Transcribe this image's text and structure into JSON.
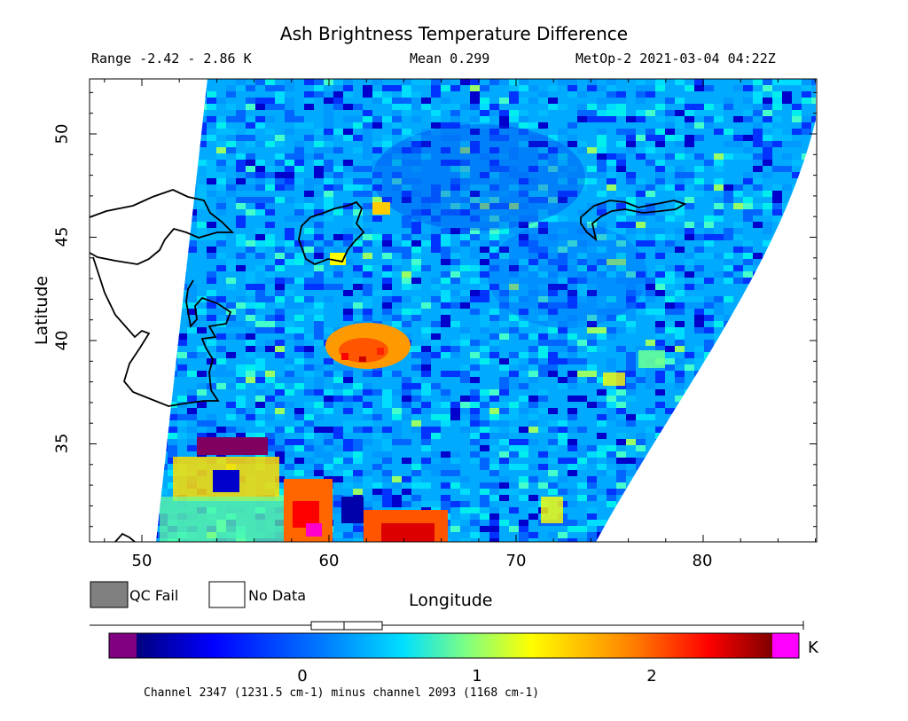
{
  "title": "Ash Brightness Temperature Difference",
  "range_text": "Range -2.42 - 2.86 K",
  "mean_text": "Mean 0.299",
  "platform_text": "MetOp-2 2021-03-04 04:22Z",
  "xlabel": "Longitude",
  "ylabel": "Latitude",
  "x_ticks": [
    "50",
    "60",
    "70",
    "80"
  ],
  "y_ticks": [
    "50",
    "45",
    "40",
    "35"
  ],
  "legend": {
    "qc_fail": "QC Fail",
    "no_data": "No Data",
    "qc_fail_color": "#808080",
    "no_data_color": "#ffffff"
  },
  "colorbar": {
    "unit": "K",
    "ticks": [
      "0",
      "1",
      "2"
    ],
    "colors": [
      "#800080",
      "#00007f",
      "#0000ff",
      "#007fff",
      "#00ffff",
      "#7fff7f",
      "#ffff00",
      "#ff7f00",
      "#ff0000",
      "#7f0000",
      "#ff00ff"
    ],
    "caption": "Channel 2347 (1231.5 cm-1) minus channel 2093 (1168 cm-1)"
  },
  "map": {
    "lon_range": [
      47,
      86
    ],
    "lat_range": [
      30.2,
      52.8
    ],
    "colors": {
      "background": "#00aaff",
      "dark_blue": "#0000cc",
      "blue": "#0055ff",
      "cyan": "#00ddff",
      "green": "#66ff99",
      "yellow": "#ffff00",
      "orange": "#ff9900",
      "red": "#ff2200",
      "purple": "#800060",
      "magenta": "#ff00cc"
    }
  }
}
